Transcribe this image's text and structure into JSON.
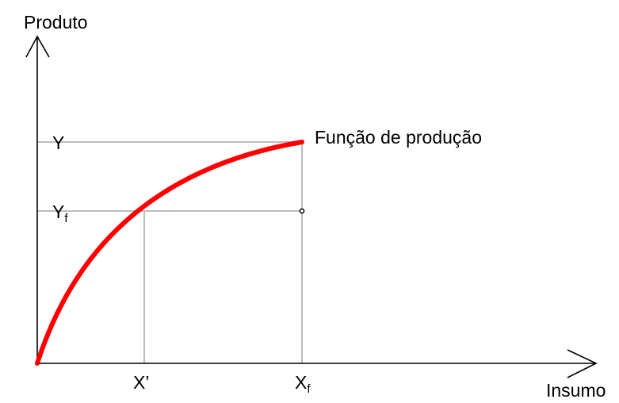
{
  "axes": {
    "y_label": "Produto",
    "x_label": "Insumo"
  },
  "labels": {
    "y": "Y",
    "yf": {
      "base": "Y",
      "sub": "f"
    },
    "x_prime": "X’",
    "xf": {
      "base": "X",
      "sub": "f"
    },
    "curve": "Função de produção"
  }
}
